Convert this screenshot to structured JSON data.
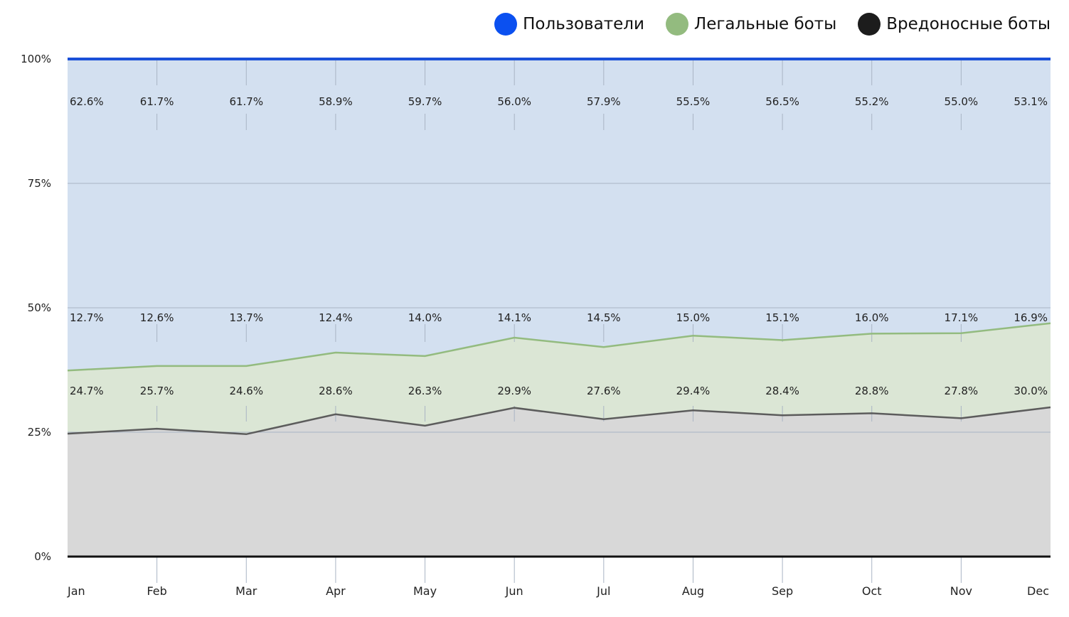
{
  "chart_data": {
    "type": "area",
    "stacked": true,
    "normalized": true,
    "categories": [
      "Jan",
      "Feb",
      "Mar",
      "Apr",
      "May",
      "Jun",
      "Jul",
      "Aug",
      "Sep",
      "Oct",
      "Nov",
      "Dec"
    ],
    "series": [
      {
        "name": "Пользователи",
        "values": [
          62.6,
          61.7,
          61.7,
          58.9,
          59.7,
          56.0,
          57.9,
          55.5,
          56.5,
          55.2,
          55.0,
          53.1
        ],
        "labels": [
          "62.6%",
          "61.7%",
          "61.7%",
          "58.9%",
          "59.7%",
          "56.0%",
          "57.9%",
          "55.5%",
          "56.5%",
          "55.2%",
          "55.0%",
          "53.1%"
        ],
        "line_color": "#1a4fd8",
        "fill_color": "#d3e0f0",
        "swatch_color": "#0b50f0"
      },
      {
        "name": "Легальные боты",
        "values": [
          12.7,
          12.6,
          13.7,
          12.4,
          14.0,
          14.1,
          14.5,
          15.0,
          15.1,
          16.0,
          17.1,
          16.9
        ],
        "labels": [
          "12.7%",
          "12.6%",
          "13.7%",
          "12.4%",
          "14.0%",
          "14.1%",
          "14.5%",
          "15.0%",
          "15.1%",
          "16.0%",
          "17.1%",
          "16.9%"
        ],
        "line_color": "#93bb7f",
        "fill_color": "#dbe6d5",
        "swatch_color": "#93bb7f"
      },
      {
        "name": "Вредоносные боты",
        "values": [
          24.7,
          25.7,
          24.6,
          28.6,
          26.3,
          29.9,
          27.6,
          29.4,
          28.4,
          28.8,
          27.8,
          30.0
        ],
        "labels": [
          "24.7%",
          "25.7%",
          "24.6%",
          "28.6%",
          "26.3%",
          "29.9%",
          "27.6%",
          "29.4%",
          "28.4%",
          "28.8%",
          "27.8%",
          "30.0%"
        ],
        "line_color": "#5c5c5c",
        "fill_color": "#d8d8d8",
        "swatch_color": "#1c1c1c"
      }
    ],
    "y_ticks": [
      {
        "value": 0,
        "label": "0%"
      },
      {
        "value": 25,
        "label": "25%"
      },
      {
        "value": 50,
        "label": "50%"
      },
      {
        "value": 75,
        "label": "75%"
      },
      {
        "value": 100,
        "label": "100%"
      }
    ],
    "ylim": [
      0,
      100
    ],
    "grid": true,
    "legend_position": "top-right",
    "title": "",
    "xlabel": "",
    "ylabel": ""
  }
}
